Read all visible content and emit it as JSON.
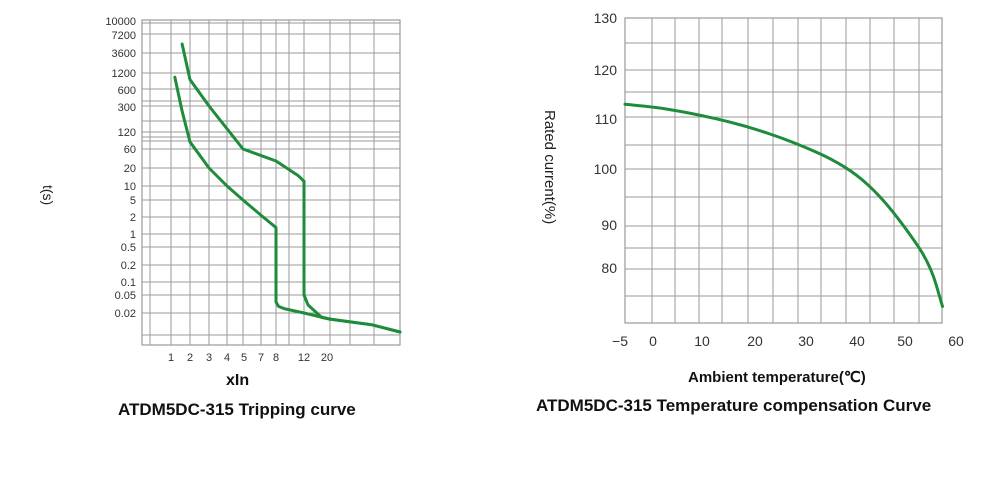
{
  "colors": {
    "curve": "#1e8c3a",
    "grid": "#9a9a9a"
  },
  "chart_data": [
    {
      "type": "line",
      "title": "ATDM5DC-315  Tripping curve",
      "xlabel": "xIn",
      "ylabel": "t(s)",
      "x_scale": "log",
      "y_scale": "log",
      "x_ticks": [
        "1",
        "2",
        "3",
        "4",
        "5",
        "7",
        "8",
        "12",
        "20"
      ],
      "y_ticks": [
        "10000",
        "7200",
        "3600",
        "1200",
        "600",
        "300",
        "120",
        "60",
        "20",
        "10",
        "5",
        "2",
        "1",
        "0.5",
        "0.2",
        "0.1",
        "0.05",
        "0.02"
      ],
      "grid": true,
      "series": [
        {
          "x": [
            1.15,
            1.5,
            2,
            3,
            4,
            5,
            7,
            8,
            8,
            8.3,
            9,
            12,
            20,
            40,
            100
          ],
          "y": [
            1000,
            250,
            80,
            20,
            10,
            5,
            2.2,
            1.3,
            0.035,
            0.028,
            0.025,
            0.02,
            0.016,
            0.013,
            0.01
          ]
        },
        {
          "x": [
            1.5,
            2,
            3,
            5,
            8,
            11,
            12,
            12,
            13,
            17,
            20,
            40,
            100
          ],
          "y": [
            5000,
            900,
            300,
            60,
            30,
            15,
            12,
            0.05,
            0.03,
            0.017,
            0.016,
            0.013,
            0.01
          ]
        }
      ]
    },
    {
      "type": "line",
      "title": "ATDM5DC-315 Temperature compensation Curve",
      "xlabel": "Ambient temperature(℃)",
      "ylabel": "Rated current(%)",
      "x_ticks": [
        "−5",
        "0",
        "10",
        "20",
        "30",
        "40",
        "50",
        "60"
      ],
      "y_ticks": [
        "130",
        "120",
        "110",
        "100",
        "90",
        "80"
      ],
      "grid": true,
      "series": [
        {
          "x": [
            -5,
            0,
            5,
            10,
            15,
            20,
            25,
            30,
            35,
            40,
            45,
            50,
            55,
            57.5
          ],
          "y": [
            113,
            112.5,
            111.7,
            110.7,
            109.5,
            108,
            106.3,
            104.3,
            102,
            99,
            95,
            89.5,
            81,
            73
          ]
        }
      ]
    }
  ]
}
